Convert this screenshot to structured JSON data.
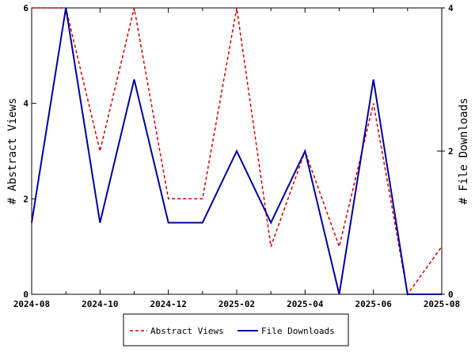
{
  "chart_data": {
    "type": "line",
    "x_dates": [
      "2024-08",
      "2024-09",
      "2024-10",
      "2024-11",
      "2024-12",
      "2025-01",
      "2025-02",
      "2025-03",
      "2025-04",
      "2025-05",
      "2025-06",
      "2025-07",
      "2025-08"
    ],
    "x_tick_labels": [
      "2024-08",
      "2024-10",
      "2024-12",
      "2025-02",
      "2025-04",
      "2025-06",
      "2025-08"
    ],
    "ylabel_left": "# Abstract Views",
    "ylabel_right": "# File Downloads",
    "ylim_left": [
      0,
      6
    ],
    "ylim_right": [
      0,
      4
    ],
    "yticks_left": [
      "0",
      "2",
      "4",
      "6"
    ],
    "yticks_right": [
      "0",
      "2",
      "4"
    ],
    "legend_position": "bottom-center",
    "series": [
      {
        "name": "Abstract Views",
        "axis": "left",
        "color": "#cc0000",
        "dash": "dashed",
        "points": [
          {
            "x": "2024-08",
            "y": 6
          },
          {
            "x": "2024-09",
            "y": 6
          },
          {
            "x": "2024-10",
            "y": 3
          },
          {
            "x": "2024-11",
            "y": 6
          },
          {
            "x": "2024-12",
            "y": 2
          },
          {
            "x": "2025-01",
            "y": 2
          },
          {
            "x": "2025-02",
            "y": 6
          },
          {
            "x": "2025-03",
            "y": 1
          },
          {
            "x": "2025-04",
            "y": 3
          },
          {
            "x": "2025-05",
            "y": 1
          },
          {
            "x": "2025-06",
            "y": 4
          },
          {
            "x": "2025-07",
            "y": 0
          },
          {
            "x": "2025-08",
            "y": 1
          }
        ]
      },
      {
        "name": "File Downloads",
        "axis": "right",
        "color": "#000099",
        "dash": "solid",
        "points": [
          {
            "x": "2024-08",
            "y": 1
          },
          {
            "x": "2024-09",
            "y": 4
          },
          {
            "x": "2024-10",
            "y": 1
          },
          {
            "x": "2024-11",
            "y": 3
          },
          {
            "x": "2024-12",
            "y": 1
          },
          {
            "x": "2025-01",
            "y": 1
          },
          {
            "x": "2025-02",
            "y": 2
          },
          {
            "x": "2025-03",
            "y": 1
          },
          {
            "x": "2025-04",
            "y": 2
          },
          {
            "x": "2025-05",
            "y": 0
          },
          {
            "x": "2025-06",
            "y": 3
          },
          {
            "x": "2025-07",
            "y": 0
          },
          {
            "x": "2025-08",
            "y": 0
          }
        ]
      }
    ]
  }
}
